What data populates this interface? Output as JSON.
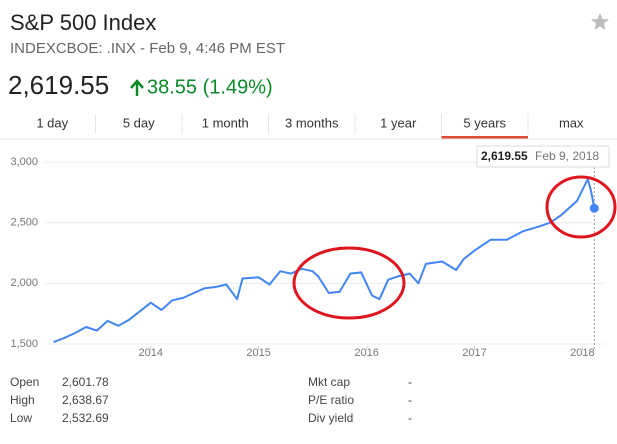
{
  "header": {
    "title": "S&P 500 Index",
    "subtitle": "INDEXCBOE: .INX - Feb 9, 4:46 PM EST",
    "price": "2,619.55",
    "change": "38.55 (1.49%)"
  },
  "tabs": [
    "1 day",
    "5 day",
    "1 month",
    "3 months",
    "1 year",
    "5 years",
    "max"
  ],
  "selected_tab": 5,
  "tooltip": {
    "value": "2,619.55",
    "date": "Feb 9, 2018"
  },
  "chart_data": {
    "type": "line",
    "x": [
      2013.1,
      2013.2,
      2013.3,
      2013.4,
      2013.5,
      2013.6,
      2013.7,
      2013.8,
      2013.9,
      2014.0,
      2014.1,
      2014.2,
      2014.3,
      2014.4,
      2014.5,
      2014.6,
      2014.7,
      2014.8,
      2014.85,
      2015.0,
      2015.1,
      2015.2,
      2015.3,
      2015.4,
      2015.5,
      2015.55,
      2015.65,
      2015.75,
      2015.85,
      2015.95,
      2016.05,
      2016.12,
      2016.2,
      2016.3,
      2016.4,
      2016.48,
      2016.55,
      2016.7,
      2016.83,
      2016.9,
      2017.0,
      2017.15,
      2017.3,
      2017.45,
      2017.6,
      2017.7,
      2017.8,
      2017.95,
      2018.05,
      2018.08,
      2018.11
    ],
    "series": [
      {
        "color": "#4285f4",
        "values": [
          1515,
          1550,
          1590,
          1640,
          1610,
          1690,
          1650,
          1700,
          1770,
          1840,
          1780,
          1860,
          1880,
          1920,
          1960,
          1970,
          1990,
          1870,
          2040,
          2050,
          1990,
          2100,
          2080,
          2120,
          2100,
          2060,
          1920,
          1930,
          2080,
          2090,
          1900,
          1870,
          2030,
          2060,
          2080,
          2000,
          2160,
          2180,
          2110,
          2200,
          2270,
          2360,
          2360,
          2430,
          2470,
          2500,
          2560,
          2680,
          2860,
          2760,
          2619.55
        ]
      }
    ],
    "xlim": [
      2013.02,
      2018.2
    ],
    "xticks": [
      2014,
      2015,
      2016,
      2017,
      2018
    ],
    "ylim": [
      1450,
      3100
    ],
    "yticks": [
      {
        "value": 1500,
        "label": "1,500"
      },
      {
        "value": 2000,
        "label": "2,000"
      },
      {
        "value": 2500,
        "label": "2,500"
      },
      {
        "value": 3000,
        "label": "3,000"
      }
    ],
    "grid": true
  },
  "stats": [
    [
      [
        "Open",
        "2,601.78"
      ],
      [
        "High",
        "2,638.67"
      ],
      [
        "Low",
        "2,532.69"
      ]
    ],
    [
      [
        "Mkt cap",
        "-"
      ],
      [
        "P/E ratio",
        "-"
      ],
      [
        "Div yield",
        "-"
      ]
    ]
  ]
}
